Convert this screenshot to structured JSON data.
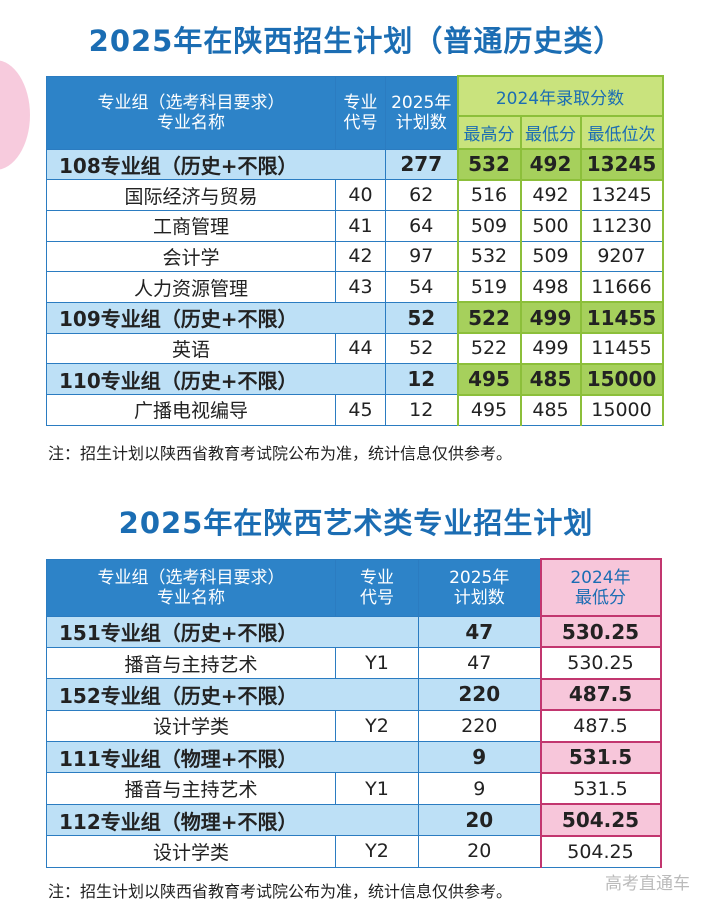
{
  "table1": {
    "title": "2025年在陕西招生计划（普通历史类）",
    "header": {
      "group": [
        "专业组（选考科目要求）",
        "专业名称"
      ],
      "code": [
        "专业",
        "代号"
      ],
      "plan": [
        "2025年",
        "计划数"
      ],
      "scores": "2024年录取分数",
      "score_cols": [
        "最高分",
        "最低分",
        "最低位次"
      ]
    },
    "rows": [
      {
        "name": "108专业组（历史+不限）",
        "plan": 277,
        "scores": [
          532,
          492,
          13245
        ]
      },
      {
        "name": "国际经济与贸易",
        "code": 40,
        "plan": 62,
        "scores": [
          516,
          492,
          13245
        ]
      },
      {
        "name": "工商管理",
        "code": 41,
        "plan": 64,
        "scores": [
          509,
          500,
          11230
        ]
      },
      {
        "name": "会计学",
        "code": 42,
        "plan": 97,
        "scores": [
          532,
          509,
          9207
        ]
      },
      {
        "name": "人力资源管理",
        "code": 43,
        "plan": 54,
        "scores": [
          519,
          498,
          11666
        ]
      },
      {
        "name": "109专业组（历史+不限）",
        "plan": 52,
        "scores": [
          522,
          499,
          11455
        ]
      },
      {
        "name": "英语",
        "code": 44,
        "plan": 52,
        "scores": [
          522,
          499,
          11455
        ]
      },
      {
        "name": "110专业组（历史+不限）",
        "plan": 12,
        "scores": [
          495,
          485,
          15000
        ]
      },
      {
        "name": "广播电视编导",
        "code": 45,
        "plan": 12,
        "scores": [
          495,
          485,
          15000
        ]
      }
    ],
    "note": "注：招生计划以陕西省教育考试院公布为准，统计信息仅供参考。"
  },
  "table2": {
    "title": "2025年在陕西艺术类专业招生计划",
    "header": {
      "group": [
        "专业组（选考科目要求）",
        "专业名称"
      ],
      "code": [
        "专业",
        "代号"
      ],
      "plan": [
        "2025年",
        "计划数"
      ],
      "scores": [
        "2024年",
        "最低分"
      ]
    },
    "rows": [
      {
        "name": "151专业组（历史+不限）",
        "plan": 47,
        "score": "530.25"
      },
      {
        "name": "播音与主持艺术",
        "code": "Y1",
        "plan": 47,
        "score": "530.25"
      },
      {
        "name": "152专业组（历史+不限）",
        "plan": 220,
        "score": "487.5"
      },
      {
        "name": "设计学类",
        "code": "Y2",
        "plan": 220,
        "score": "487.5"
      },
      {
        "name": "111专业组（物理+不限）",
        "plan": 9,
        "score": "531.5"
      },
      {
        "name": "播音与主持艺术",
        "code": "Y1",
        "plan": 9,
        "score": "531.5"
      },
      {
        "name": "112专业组（物理+不限）",
        "plan": 20,
        "score": "504.25"
      },
      {
        "name": "设计学类",
        "code": "Y2",
        "plan": 20,
        "score": "504.25"
      }
    ],
    "note": "注：招生计划以陕西省教育考试院公布为准，统计信息仅供参考。"
  },
  "watermark": "高考直通车"
}
